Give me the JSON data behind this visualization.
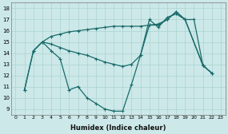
{
  "xlabel": "Humidex (Indice chaleur)",
  "background_color": "#cce8e8",
  "grid_color": "#aad4d0",
  "line_color": "#1a6b6b",
  "xlim": [
    -0.5,
    23.5
  ],
  "ylim": [
    8.5,
    18.5
  ],
  "xticks": [
    0,
    1,
    2,
    3,
    4,
    5,
    6,
    7,
    8,
    9,
    10,
    11,
    12,
    13,
    14,
    15,
    16,
    17,
    18,
    19,
    20,
    21,
    22,
    23
  ],
  "yticks": [
    9,
    10,
    11,
    12,
    13,
    14,
    15,
    16,
    17,
    18
  ],
  "line1_x": [
    1,
    2,
    3,
    4,
    5,
    6,
    7,
    8,
    9,
    10,
    11,
    12,
    13,
    14,
    15,
    16,
    17,
    18,
    19,
    21,
    22
  ],
  "line1_y": [
    10.7,
    14.2,
    15.0,
    14.2,
    13.5,
    10.7,
    11.0,
    10.0,
    9.5,
    9.0,
    8.8,
    8.8,
    11.2,
    13.8,
    17.0,
    16.3,
    17.2,
    17.5,
    17.0,
    12.9,
    12.2
  ],
  "line2_x": [
    2,
    3,
    4,
    5,
    6,
    7,
    8,
    9,
    10,
    11,
    12,
    13,
    14,
    15,
    16,
    17,
    18,
    19,
    21,
    22
  ],
  "line2_y": [
    14.2,
    15.0,
    14.8,
    14.5,
    14.2,
    14.0,
    13.8,
    13.5,
    13.2,
    13.0,
    12.8,
    13.0,
    13.8,
    16.5,
    16.5,
    17.0,
    17.7,
    17.0,
    12.9,
    12.2
  ],
  "line3_x": [
    1,
    2,
    3,
    4,
    5,
    6,
    7,
    8,
    9,
    10,
    11,
    12,
    13,
    14,
    15,
    16,
    17,
    18,
    19,
    20,
    21,
    22
  ],
  "line3_y": [
    10.7,
    14.2,
    15.0,
    15.5,
    15.7,
    15.9,
    16.0,
    16.1,
    16.2,
    16.3,
    16.4,
    16.4,
    16.4,
    16.4,
    16.5,
    16.6,
    17.0,
    17.7,
    17.0,
    17.0,
    12.9,
    12.2
  ],
  "lw": 0.9,
  "ms": 3.0
}
